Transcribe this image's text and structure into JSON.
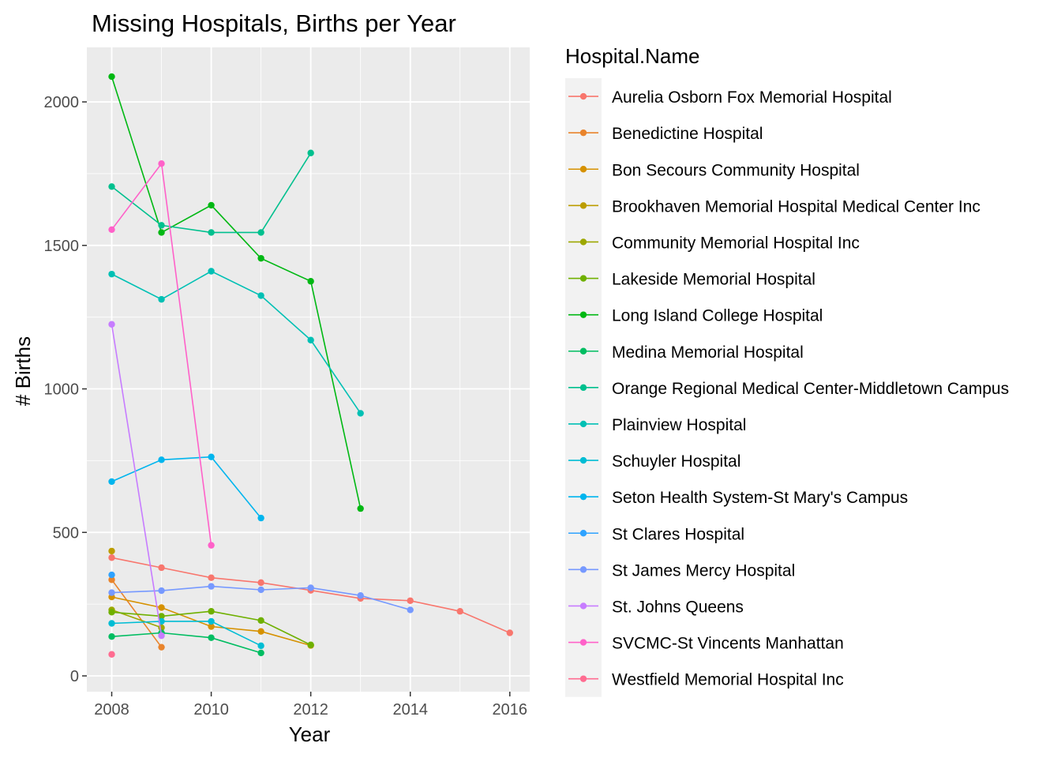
{
  "chart_data": {
    "type": "line",
    "title": "Missing Hospitals, Births per Year",
    "xlabel": "Year",
    "ylabel": "# Births",
    "xlim": [
      2007.5,
      2016.4
    ],
    "ylim": [
      -55,
      2190
    ],
    "x_ticks": [
      2008,
      2010,
      2012,
      2014,
      2016
    ],
    "y_ticks": [
      0,
      500,
      1000,
      1500,
      2000
    ],
    "grid": true,
    "legend": {
      "title": "Hospital.Name",
      "position": "right"
    },
    "series": [
      {
        "name": "Aurelia Osborn Fox Memorial Hospital",
        "color": "#F8766D",
        "points": [
          [
            2008,
            412
          ],
          [
            2009,
            377
          ],
          [
            2010,
            342
          ],
          [
            2011,
            325
          ],
          [
            2012,
            298
          ],
          [
            2013,
            270
          ],
          [
            2014,
            262
          ],
          [
            2015,
            225
          ],
          [
            2016,
            150
          ]
        ]
      },
      {
        "name": "Benedictine Hospital",
        "color": "#E9842C",
        "points": [
          [
            2008,
            335
          ],
          [
            2009,
            100
          ]
        ]
      },
      {
        "name": "Bon Secours Community Hospital",
        "color": "#D69100",
        "points": [
          [
            2008,
            275
          ],
          [
            2009,
            238
          ],
          [
            2010,
            172
          ],
          [
            2011,
            155
          ],
          [
            2012,
            106
          ]
        ]
      },
      {
        "name": "Brookhaven Memorial Hospital Medical Center Inc",
        "color": "#BC9D00",
        "points": [
          [
            2008,
            435
          ]
        ]
      },
      {
        "name": "Community Memorial Hospital Inc",
        "color": "#9CA700",
        "points": [
          [
            2008,
            230
          ],
          [
            2009,
            168
          ]
        ]
      },
      {
        "name": "Lakeside Memorial Hospital",
        "color": "#6FB000",
        "points": [
          [
            2008,
            222
          ],
          [
            2009,
            208
          ],
          [
            2010,
            225
          ],
          [
            2011,
            193
          ],
          [
            2012,
            108
          ]
        ]
      },
      {
        "name": "Long Island College Hospital",
        "color": "#00B813",
        "points": [
          [
            2008,
            2088
          ],
          [
            2009,
            1545
          ],
          [
            2010,
            1640
          ],
          [
            2011,
            1455
          ],
          [
            2012,
            1375
          ],
          [
            2013,
            583
          ]
        ]
      },
      {
        "name": "Medina Memorial Hospital",
        "color": "#00BD61",
        "points": [
          [
            2008,
            137
          ],
          [
            2009,
            150
          ],
          [
            2010,
            133
          ],
          [
            2011,
            80
          ]
        ]
      },
      {
        "name": "Orange Regional Medical Center-Middletown Campus",
        "color": "#00C08E",
        "points": [
          [
            2008,
            1705
          ],
          [
            2009,
            1570
          ],
          [
            2010,
            1545
          ],
          [
            2011,
            1545
          ],
          [
            2012,
            1822
          ]
        ]
      },
      {
        "name": "Plainview Hospital",
        "color": "#00C0B4",
        "points": [
          [
            2008,
            1400
          ],
          [
            2009,
            1312
          ],
          [
            2010,
            1410
          ],
          [
            2011,
            1325
          ],
          [
            2012,
            1170
          ],
          [
            2013,
            915
          ]
        ]
      },
      {
        "name": "Schuyler Hospital",
        "color": "#00BDD4",
        "points": [
          [
            2008,
            183
          ],
          [
            2009,
            190
          ],
          [
            2010,
            190
          ],
          [
            2011,
            105
          ]
        ]
      },
      {
        "name": "Seton Health System-St Mary's Campus",
        "color": "#00B5EE",
        "points": [
          [
            2008,
            677
          ],
          [
            2009,
            753
          ],
          [
            2010,
            763
          ],
          [
            2011,
            550
          ]
        ]
      },
      {
        "name": "St Clares Hospital",
        "color": "#2EA2FF",
        "points": [
          [
            2008,
            352
          ]
        ]
      },
      {
        "name": "St James Mercy Hospital",
        "color": "#7699FF",
        "points": [
          [
            2008,
            290
          ],
          [
            2009,
            297
          ],
          [
            2010,
            312
          ],
          [
            2011,
            300
          ],
          [
            2012,
            307
          ],
          [
            2013,
            280
          ],
          [
            2014,
            230
          ]
        ]
      },
      {
        "name": "St. Johns Queens",
        "color": "#C77CFF",
        "points": [
          [
            2008,
            1225
          ],
          [
            2009,
            140
          ]
        ]
      },
      {
        "name": "SVCMC-St Vincents Manhattan",
        "color": "#FF61C9",
        "points": [
          [
            2008,
            1555
          ],
          [
            2009,
            1785
          ],
          [
            2010,
            455
          ]
        ]
      },
      {
        "name": "Westfield Memorial Hospital Inc",
        "color": "#FF6C91",
        "points": [
          [
            2008,
            75
          ]
        ]
      }
    ]
  }
}
